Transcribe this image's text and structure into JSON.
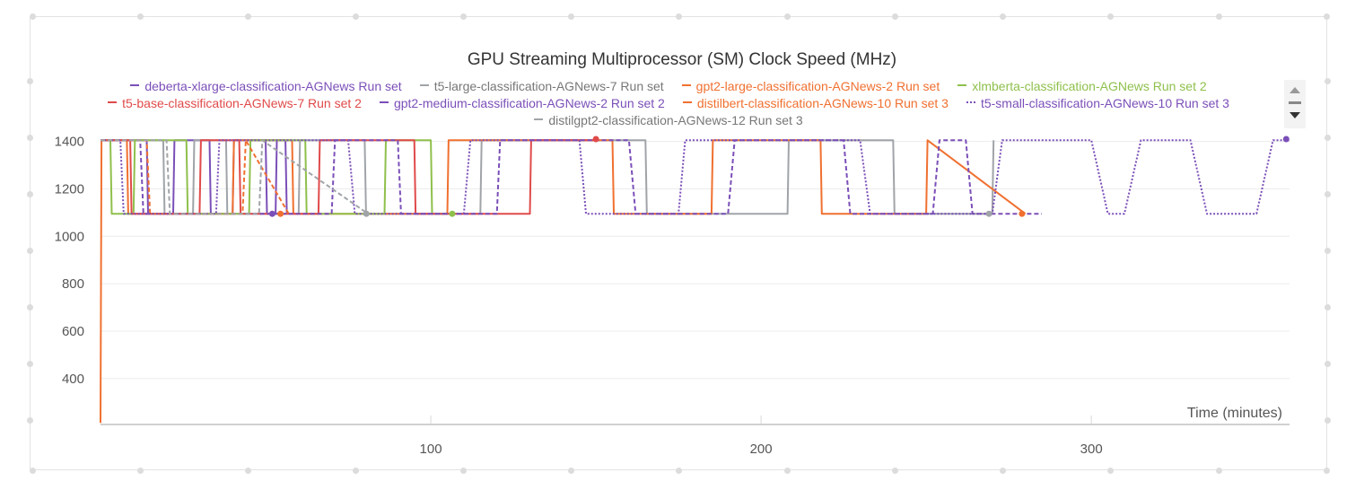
{
  "chart_data": {
    "type": "line",
    "title": "GPU Streaming Multiprocessor (SM) Clock Speed (MHz)",
    "xlabel": "Time (minutes)",
    "ylabel": "",
    "xlim": [
      0,
      360
    ],
    "ylim": [
      210,
      1410
    ],
    "x_ticks": [
      100,
      200,
      300
    ],
    "y_ticks": [
      400,
      600,
      800,
      1000,
      1200,
      1400
    ],
    "grid": true,
    "legend_position": "top",
    "series": [
      {
        "name": "deberta-xlarge-classification-AGNews Run set",
        "color": "#7b4fb8",
        "dash": "solid",
        "x": [
          0,
          1,
          14,
          14.4,
          22,
          22.4,
          33,
          33.4,
          40,
          40.4,
          50,
          50.4,
          53,
          53.4,
          56,
          56.4
        ],
        "y": [
          1405,
          1405,
          1405,
          1095,
          1095,
          1405,
          1405,
          1095,
          1095,
          1405,
          1405,
          1095,
          1095,
          1405,
          1405,
          1095
        ]
      },
      {
        "name": "t5-large-classification-AGNews-7 Run set",
        "color": "#a0a4a8",
        "dash": "solid",
        "x": [
          0,
          2,
          19,
          19.4,
          28,
          28.4,
          38,
          38.4,
          60,
          60.4,
          80,
          80.4,
          115,
          115.4,
          165,
          165.4,
          208,
          208.4,
          240,
          240.4,
          270,
          270.4
        ],
        "y": [
          1405,
          1405,
          1405,
          1095,
          1095,
          1405,
          1405,
          1095,
          1095,
          1405,
          1405,
          1095,
          1095,
          1405,
          1405,
          1095,
          1095,
          1405,
          1405,
          1095,
          1095,
          1405
        ]
      },
      {
        "name": "gpt2-large-classification-AGNews-2 Run set",
        "color": "#f07030",
        "dash": "solid",
        "x": [
          0,
          0.3,
          0.6,
          8,
          8.4,
          40,
          40.4,
          58,
          58.4,
          105,
          105.4,
          155,
          155.4,
          185,
          185.4,
          218,
          218.4,
          250,
          250.4,
          280
        ],
        "y": [
          213,
          1405,
          1405,
          1405,
          1095,
          1095,
          1405,
          1405,
          1095,
          1095,
          1405,
          1405,
          1095,
          1095,
          1405,
          1405,
          1095,
          1095,
          1405,
          1095
        ]
      },
      {
        "name": "xlmberta-classification-AGNews Run set 2",
        "color": "#8fc04c",
        "dash": "solid",
        "x": [
          0,
          3,
          3.4,
          10,
          10.4,
          26,
          26.4,
          45,
          45.4,
          62,
          62.4,
          86,
          86.4,
          100,
          100.4,
          107
        ],
        "y": [
          1405,
          1405,
          1095,
          1095,
          1405,
          1405,
          1095,
          1095,
          1405,
          1405,
          1095,
          1095,
          1405,
          1405,
          1095,
          1095
        ]
      },
      {
        "name": "t5-base-classification-AGNews-7 Run set 2",
        "color": "#e04a4a",
        "dash": "solid",
        "x": [
          0,
          9,
          9.4,
          30,
          30.4,
          42,
          42.4,
          66,
          66.4,
          95,
          95.4,
          130,
          130.4,
          150
        ],
        "y": [
          1405,
          1405,
          1095,
          1095,
          1405,
          1405,
          1095,
          1095,
          1405,
          1405,
          1095,
          1095,
          1405,
          1405
        ]
      },
      {
        "name": "gpt2-medium-classification-AGNews-2 Run set 2",
        "color": "#7b4fb8",
        "dash": "dashed",
        "x": [
          0,
          12,
          13,
          70,
          71,
          90,
          91,
          120,
          121,
          160,
          162,
          190,
          192,
          225,
          227,
          252,
          254,
          262,
          264,
          285
        ],
        "y": [
          1405,
          1405,
          1095,
          1095,
          1405,
          1405,
          1095,
          1095,
          1405,
          1405,
          1095,
          1095,
          1405,
          1405,
          1095,
          1095,
          1405,
          1405,
          1095,
          1095
        ]
      },
      {
        "name": "distilbert-classification-AGNews-10 Run set 3",
        "color": "#f07030",
        "dash": "dashed",
        "x": [
          0,
          14,
          15,
          43,
          44,
          57
        ],
        "y": [
          1405,
          1405,
          1095,
          1095,
          1405,
          1095
        ]
      },
      {
        "name": "t5-small-classification-AGNews-10 Run set 3",
        "color": "#7b4fb8",
        "dash": "dotted",
        "x": [
          0,
          6,
          7,
          35,
          36,
          75,
          77,
          110,
          112,
          145,
          147,
          175,
          177,
          230,
          233,
          270,
          273,
          300,
          305,
          310,
          315,
          330,
          335,
          350,
          355,
          360
        ],
        "y": [
          1405,
          1405,
          1095,
          1095,
          1405,
          1405,
          1095,
          1095,
          1405,
          1405,
          1095,
          1095,
          1405,
          1405,
          1095,
          1095,
          1405,
          1405,
          1095,
          1095,
          1405,
          1405,
          1095,
          1095,
          1405,
          1405
        ]
      },
      {
        "name": "distilgpt2-classification-AGNews-12 Run set 3",
        "color": "#a0a4a8",
        "dash": "dashed",
        "x": [
          0,
          20,
          21,
          48,
          49,
          81
        ],
        "y": [
          1405,
          1405,
          1095,
          1095,
          1405,
          1095
        ]
      }
    ],
    "markers": [
      {
        "x": 52,
        "y": 1095,
        "color": "#7b4fb8"
      },
      {
        "x": 54.5,
        "y": 1095,
        "color": "#f07030"
      },
      {
        "x": 80.5,
        "y": 1095,
        "color": "#a0a4a8"
      },
      {
        "x": 106.5,
        "y": 1095,
        "color": "#8fc04c"
      },
      {
        "x": 150,
        "y": 1410,
        "color": "#e04a4a"
      },
      {
        "x": 269,
        "y": 1095,
        "color": "#a0a4a8"
      },
      {
        "x": 279,
        "y": 1095,
        "color": "#f07030"
      },
      {
        "x": 359,
        "y": 1410,
        "color": "#7b4fb8"
      }
    ]
  }
}
